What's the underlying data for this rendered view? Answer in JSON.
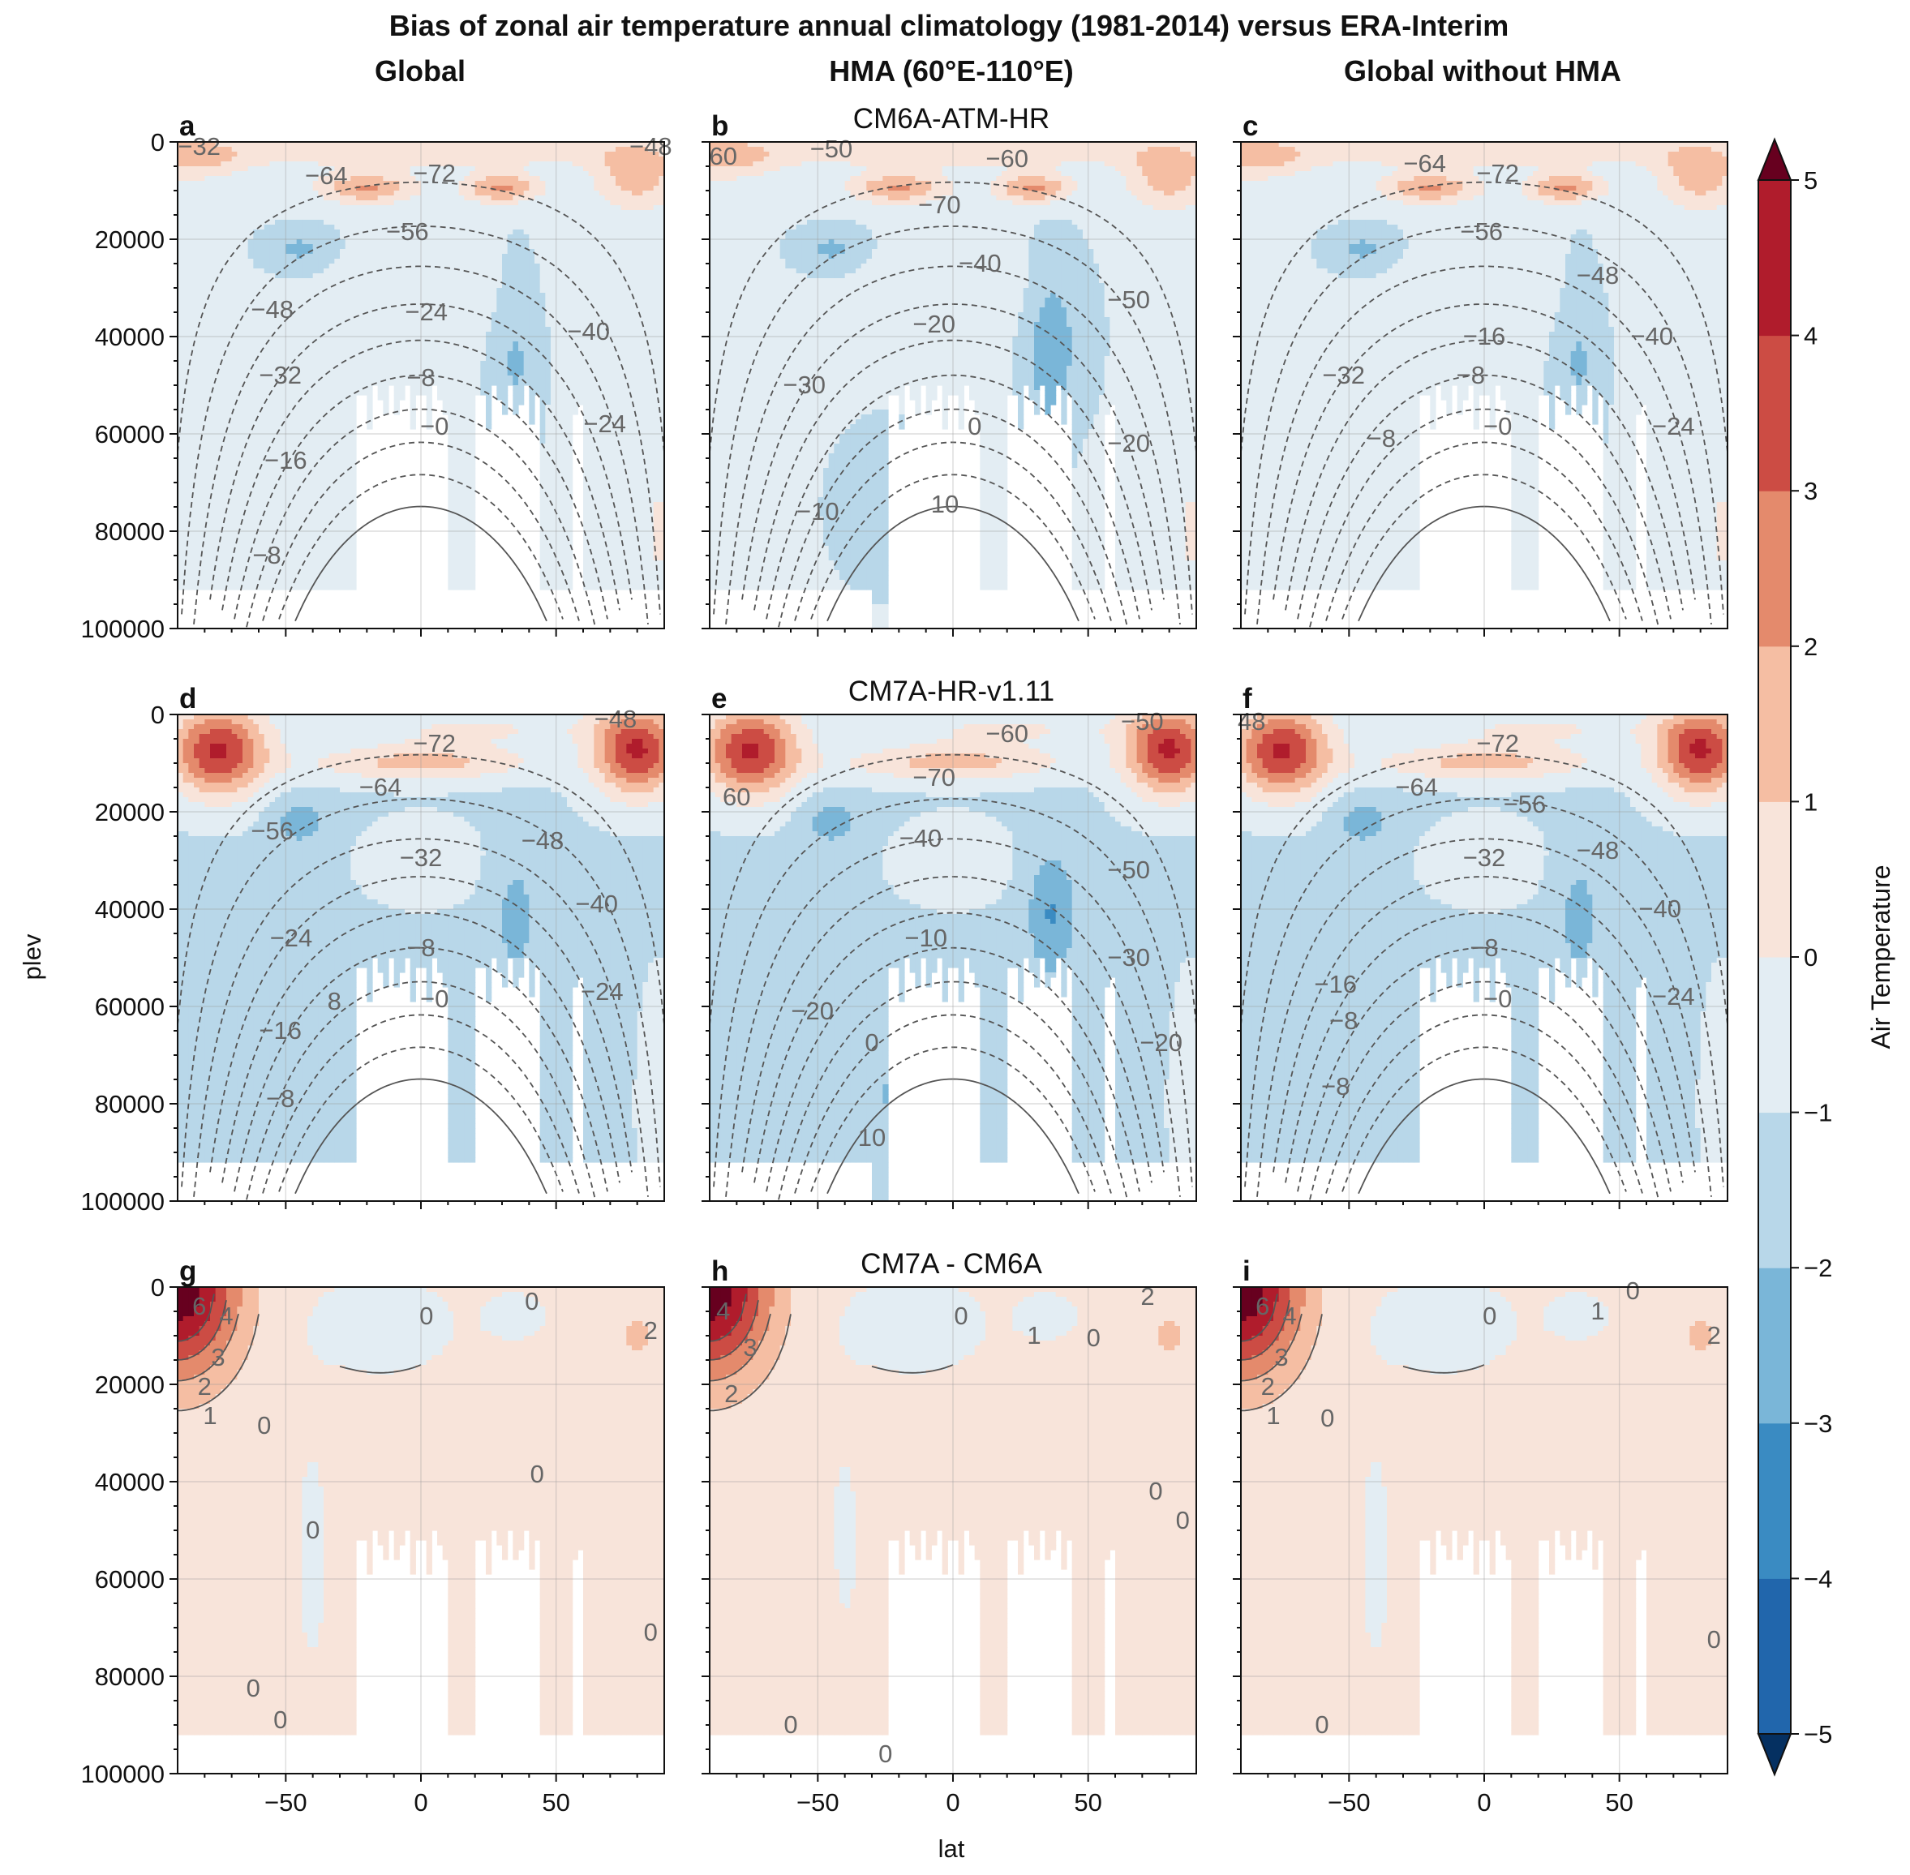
{
  "figure": {
    "suptitle": "Bias of zonal air temperature annual climatology (1981-2014) versus ERA-Interim",
    "column_titles": [
      "Global",
      "HMA (60°E-110°E)",
      "Global without HMA"
    ],
    "row_titles": [
      "CM6A-ATM-HR",
      "CM7A-HR-v1.11",
      "CM7A - CM6A"
    ],
    "panel_letters": [
      "a",
      "b",
      "c",
      "d",
      "e",
      "f",
      "g",
      "h",
      "i"
    ],
    "xlabel": "lat",
    "ylabel": "plev"
  },
  "colors": {
    "palette": "RdBu_r",
    "levels": [
      -5,
      -4,
      -3,
      -2,
      -1,
      0,
      1,
      2,
      3,
      4,
      5
    ],
    "bins": [
      "#2166ac",
      "#3a8bc2",
      "#7ab6d8",
      "#b8d7e9",
      "#e3edf3",
      "#f8e4da",
      "#f5bea3",
      "#e48a6c",
      "#cc4c44",
      "#b01c2c"
    ],
    "under": "#053061",
    "over": "#67001f",
    "contour": "#555555"
  },
  "chart_data": {
    "type": "heatmap",
    "subtype": "filled contour (latitude-pressure cross-section) with overlaid contour lines",
    "panels_grid": "3x3",
    "x_axis": {
      "label": "lat",
      "lim": [
        -90,
        90
      ],
      "ticks": [
        -50,
        0,
        50
      ]
    },
    "y_axis": {
      "label": "plev",
      "lim": [
        100000,
        0
      ],
      "ticks": [
        0,
        20000,
        40000,
        60000,
        80000,
        100000
      ],
      "inverted": true
    },
    "colorbar": {
      "label": "Air Temperature",
      "ticks": [
        -5,
        -4,
        -3,
        -2,
        -1,
        0,
        1,
        2,
        3,
        4,
        5
      ],
      "extend": "both",
      "location": "right"
    },
    "panels": [
      {
        "letter": "a",
        "row": 0,
        "col": 0,
        "contour_labels": [
          {
            "lat": -35,
            "plev": 7000,
            "text": "−64"
          },
          {
            "lat": 5,
            "plev": 6500,
            "text": "−72"
          },
          {
            "lat": -5,
            "plev": 18500,
            "text": "−56"
          },
          {
            "lat": -55,
            "plev": 34500,
            "text": "−48"
          },
          {
            "lat": 2,
            "plev": 35000,
            "text": "−24"
          },
          {
            "lat": 62,
            "plev": 39000,
            "text": "−40"
          },
          {
            "lat": -52,
            "plev": 48000,
            "text": "−32"
          },
          {
            "lat": 0,
            "plev": 48500,
            "text": "−8"
          },
          {
            "lat": 5,
            "plev": 58500,
            "text": "−0"
          },
          {
            "lat": 68,
            "plev": 58000,
            "text": "−24"
          },
          {
            "lat": -50,
            "plev": 65500,
            "text": "−16"
          },
          {
            "lat": -57,
            "plev": 85000,
            "text": "−8"
          },
          {
            "lat": -82,
            "plev": 1000,
            "text": "−32"
          },
          {
            "lat": 85,
            "plev": 1000,
            "text": "−48"
          }
        ]
      },
      {
        "letter": "b",
        "row": 0,
        "col": 1,
        "contour_labels": [
          {
            "lat": -85,
            "plev": 3000,
            "text": "60"
          },
          {
            "lat": -45,
            "plev": 1500,
            "text": "−50"
          },
          {
            "lat": 20,
            "plev": 3500,
            "text": "−60"
          },
          {
            "lat": -5,
            "plev": 13000,
            "text": "−70"
          },
          {
            "lat": 10,
            "plev": 25000,
            "text": "−40"
          },
          {
            "lat": 65,
            "plev": 32500,
            "text": "−50"
          },
          {
            "lat": -7,
            "plev": 37500,
            "text": "−20"
          },
          {
            "lat": -55,
            "plev": 50000,
            "text": "−30"
          },
          {
            "lat": 8,
            "plev": 58500,
            "text": "0"
          },
          {
            "lat": 65,
            "plev": 62000,
            "text": "−20"
          },
          {
            "lat": -50,
            "plev": 76000,
            "text": "−10"
          },
          {
            "lat": -3,
            "plev": 74500,
            "text": "10"
          }
        ]
      },
      {
        "letter": "c",
        "row": 0,
        "col": 2,
        "contour_labels": [
          {
            "lat": -22,
            "plev": 4500,
            "text": "−64"
          },
          {
            "lat": 5,
            "plev": 6500,
            "text": "−72"
          },
          {
            "lat": -1,
            "plev": 18500,
            "text": "−56"
          },
          {
            "lat": 42,
            "plev": 27500,
            "text": "−48"
          },
          {
            "lat": 0,
            "plev": 40000,
            "text": "−16"
          },
          {
            "lat": 62,
            "plev": 40000,
            "text": "−40"
          },
          {
            "lat": -52,
            "plev": 48000,
            "text": "−32"
          },
          {
            "lat": -5,
            "plev": 48000,
            "text": "−8"
          },
          {
            "lat": 5,
            "plev": 58500,
            "text": "−0"
          },
          {
            "lat": 70,
            "plev": 58500,
            "text": "−24"
          },
          {
            "lat": -38,
            "plev": 61000,
            "text": "−8"
          }
        ]
      },
      {
        "letter": "d",
        "row": 1,
        "col": 0,
        "contour_labels": [
          {
            "lat": 5,
            "plev": 6000,
            "text": "−72"
          },
          {
            "lat": -15,
            "plev": 15000,
            "text": "−64"
          },
          {
            "lat": -55,
            "plev": 24000,
            "text": "−56"
          },
          {
            "lat": 0,
            "plev": 29500,
            "text": "−32"
          },
          {
            "lat": 45,
            "plev": 26000,
            "text": "−48"
          },
          {
            "lat": 65,
            "plev": 39000,
            "text": "−40"
          },
          {
            "lat": -48,
            "plev": 46000,
            "text": "−24"
          },
          {
            "lat": 0,
            "plev": 48000,
            "text": "−8"
          },
          {
            "lat": -32,
            "plev": 59000,
            "text": "8"
          },
          {
            "lat": 5,
            "plev": 58500,
            "text": "−0"
          },
          {
            "lat": 67,
            "plev": 57000,
            "text": "−24"
          },
          {
            "lat": -52,
            "plev": 65000,
            "text": "−16"
          },
          {
            "lat": -52,
            "plev": 79000,
            "text": "−8"
          },
          {
            "lat": 72,
            "plev": 1000,
            "text": "−48"
          }
        ]
      },
      {
        "letter": "e",
        "row": 1,
        "col": 1,
        "contour_labels": [
          {
            "lat": 20,
            "plev": 4000,
            "text": "−60"
          },
          {
            "lat": 70,
            "plev": 1500,
            "text": "−50"
          },
          {
            "lat": -7,
            "plev": 13000,
            "text": "−70"
          },
          {
            "lat": -80,
            "plev": 17000,
            "text": "60"
          },
          {
            "lat": -12,
            "plev": 25500,
            "text": "−40"
          },
          {
            "lat": 65,
            "plev": 32000,
            "text": "−50"
          },
          {
            "lat": -10,
            "plev": 46000,
            "text": "−10"
          },
          {
            "lat": 65,
            "plev": 50000,
            "text": "−30"
          },
          {
            "lat": -52,
            "plev": 61000,
            "text": "−20"
          },
          {
            "lat": -30,
            "plev": 67500,
            "text": "0"
          },
          {
            "lat": 77,
            "plev": 67500,
            "text": "−20"
          },
          {
            "lat": -30,
            "plev": 87000,
            "text": "10"
          }
        ]
      },
      {
        "letter": "f",
        "row": 1,
        "col": 2,
        "contour_labels": [
          {
            "lat": 5,
            "plev": 6000,
            "text": "−72"
          },
          {
            "lat": -25,
            "plev": 15000,
            "text": "−64"
          },
          {
            "lat": 15,
            "plev": 18500,
            "text": "−56"
          },
          {
            "lat": 0,
            "plev": 29500,
            "text": "−32"
          },
          {
            "lat": 42,
            "plev": 28000,
            "text": "−48"
          },
          {
            "lat": 65,
            "plev": 40000,
            "text": "−40"
          },
          {
            "lat": 0,
            "plev": 48000,
            "text": "−8"
          },
          {
            "lat": -55,
            "plev": 55500,
            "text": "−16"
          },
          {
            "lat": 5,
            "plev": 58500,
            "text": "−0"
          },
          {
            "lat": 70,
            "plev": 58000,
            "text": "−24"
          },
          {
            "lat": -52,
            "plev": 63000,
            "text": "−8"
          },
          {
            "lat": -55,
            "plev": 76500,
            "text": "−8"
          },
          {
            "lat": -86,
            "plev": 1500,
            "text": "48"
          }
        ]
      },
      {
        "letter": "g",
        "row": 2,
        "col": 0,
        "contour_labels": [
          {
            "lat": -82,
            "plev": 4000,
            "text": "6"
          },
          {
            "lat": -72,
            "plev": 6000,
            "text": "4"
          },
          {
            "lat": -75,
            "plev": 14500,
            "text": "3"
          },
          {
            "lat": -80,
            "plev": 20500,
            "text": "2"
          },
          {
            "lat": -78,
            "plev": 26500,
            "text": "1"
          },
          {
            "lat": 2,
            "plev": 6000,
            "text": "0"
          },
          {
            "lat": 41,
            "plev": 3000,
            "text": "0"
          },
          {
            "lat": -58,
            "plev": 28500,
            "text": "0"
          },
          {
            "lat": 43,
            "plev": 38500,
            "text": "0"
          },
          {
            "lat": -40,
            "plev": 50000,
            "text": "0"
          },
          {
            "lat": -62,
            "plev": 82500,
            "text": "0"
          },
          {
            "lat": -52,
            "plev": 89000,
            "text": "0"
          },
          {
            "lat": 85,
            "plev": 9000,
            "text": "2"
          },
          {
            "lat": 85,
            "plev": 71000,
            "text": "0"
          }
        ]
      },
      {
        "letter": "h",
        "row": 2,
        "col": 1,
        "contour_labels": [
          {
            "lat": -85,
            "plev": 5000,
            "text": "4"
          },
          {
            "lat": -75,
            "plev": 12500,
            "text": "3"
          },
          {
            "lat": -82,
            "plev": 22000,
            "text": "2"
          },
          {
            "lat": 3,
            "plev": 6000,
            "text": "0"
          },
          {
            "lat": 30,
            "plev": 10000,
            "text": "1"
          },
          {
            "lat": 52,
            "plev": 10500,
            "text": "0"
          },
          {
            "lat": 72,
            "plev": 2000,
            "text": "2"
          },
          {
            "lat": 75,
            "plev": 42000,
            "text": "0"
          },
          {
            "lat": 85,
            "plev": 48000,
            "text": "0"
          },
          {
            "lat": -60,
            "plev": 90000,
            "text": "0"
          },
          {
            "lat": -25,
            "plev": 96000,
            "text": "0"
          }
        ]
      },
      {
        "letter": "i",
        "row": 2,
        "col": 2,
        "contour_labels": [
          {
            "lat": -82,
            "plev": 4000,
            "text": "6"
          },
          {
            "lat": -72,
            "plev": 6000,
            "text": "4"
          },
          {
            "lat": -75,
            "plev": 14500,
            "text": "3"
          },
          {
            "lat": -80,
            "plev": 20500,
            "text": "2"
          },
          {
            "lat": -78,
            "plev": 26500,
            "text": "1"
          },
          {
            "lat": 2,
            "plev": 6000,
            "text": "0"
          },
          {
            "lat": 42,
            "plev": 5000,
            "text": "1"
          },
          {
            "lat": 55,
            "plev": 800,
            "text": "0"
          },
          {
            "lat": -58,
            "plev": 27000,
            "text": "0"
          },
          {
            "lat": -60,
            "plev": 90000,
            "text": "0"
          },
          {
            "lat": 85,
            "plev": 10000,
            "text": "2"
          },
          {
            "lat": 85,
            "plev": 72500,
            "text": "0"
          }
        ]
      }
    ]
  }
}
